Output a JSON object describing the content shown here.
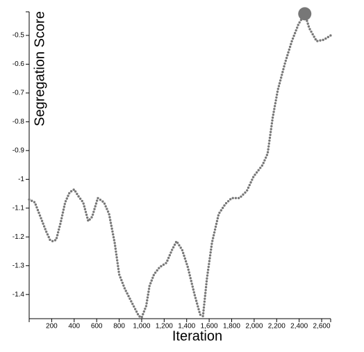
{
  "chart_data": {
    "type": "line",
    "xlabel": "Iteration",
    "ylabel": "Segregation Score",
    "x": [
      0,
      50,
      100,
      150,
      185,
      210,
      240,
      280,
      320,
      360,
      400,
      440,
      480,
      525,
      560,
      610,
      665,
      710,
      760,
      800,
      850,
      915,
      975,
      1000,
      1040,
      1070,
      1110,
      1160,
      1220,
      1270,
      1310,
      1360,
      1410,
      1470,
      1520,
      1545,
      1580,
      1625,
      1685,
      1745,
      1800,
      1870,
      1935,
      1995,
      2075,
      2120,
      2165,
      2210,
      2275,
      2335,
      2395,
      2450,
      2490,
      2555,
      2620,
      2680
    ],
    "values": [
      -1.07,
      -1.08,
      -1.13,
      -1.18,
      -1.21,
      -1.215,
      -1.21,
      -1.15,
      -1.08,
      -1.045,
      -1.035,
      -1.06,
      -1.08,
      -1.145,
      -1.13,
      -1.065,
      -1.08,
      -1.12,
      -1.22,
      -1.33,
      -1.38,
      -1.43,
      -1.475,
      -1.48,
      -1.44,
      -1.37,
      -1.33,
      -1.305,
      -1.29,
      -1.245,
      -1.215,
      -1.245,
      -1.305,
      -1.4,
      -1.47,
      -1.475,
      -1.345,
      -1.22,
      -1.12,
      -1.085,
      -1.065,
      -1.065,
      -1.04,
      -0.99,
      -0.95,
      -0.91,
      -0.785,
      -0.69,
      -0.595,
      -0.52,
      -0.46,
      -0.425,
      -0.475,
      -0.52,
      -0.515,
      -0.5
    ],
    "color": "#777777",
    "highlight_index": 51,
    "xlim": [
      0,
      2680
    ],
    "ylim": [
      -1.484,
      -0.418
    ],
    "xticks": [
      200,
      400,
      600,
      800,
      {
        "value": 1000,
        "label": "1,000"
      },
      {
        "value": 1200,
        "label": "1,200"
      },
      {
        "value": 1400,
        "label": "1,400"
      },
      {
        "value": 1600,
        "label": "1,600"
      },
      {
        "value": 1800,
        "label": "1,800"
      },
      {
        "value": 2000,
        "label": "2,000"
      },
      {
        "value": 2200,
        "label": "2,200"
      },
      {
        "value": 2400,
        "label": "2,400"
      },
      {
        "value": 2600,
        "label": "2,600"
      }
    ],
    "yticks": [
      -1.4,
      -1.3,
      -1.2,
      -1.1,
      -1.0,
      -0.9,
      -0.8,
      -0.7,
      -0.6,
      -0.5
    ]
  }
}
